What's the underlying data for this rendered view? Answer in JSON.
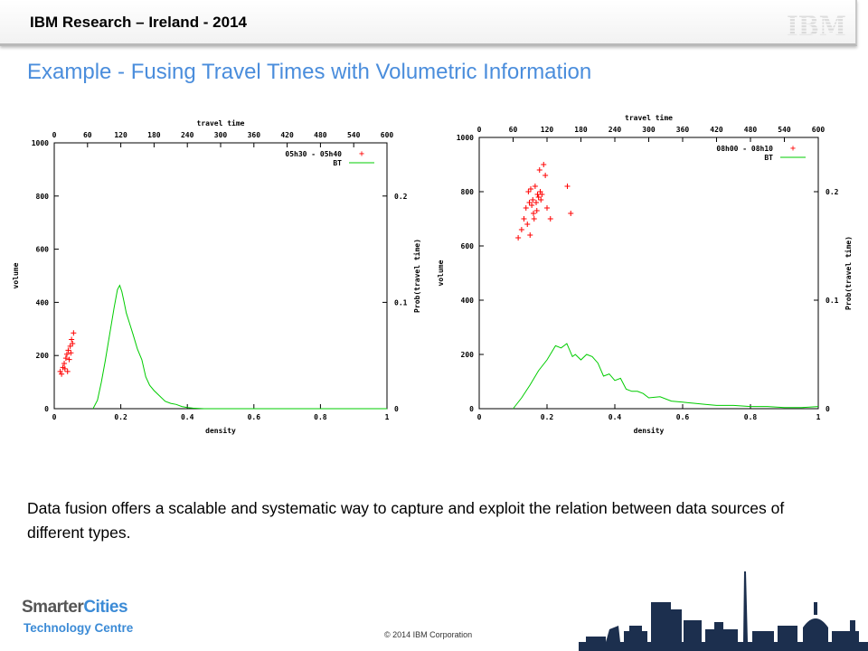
{
  "header": {
    "title": "IBM Research – Ireland - 2014",
    "logo": "IBM"
  },
  "slide_title": "Example - Fusing Travel Times with Volumetric Information",
  "chart_data": [
    {
      "type": "scatter",
      "xlabel": "density",
      "ylabel": "volume",
      "x2label": "travel time",
      "y2label": "Prob(travel time)",
      "xlim": [
        0,
        1
      ],
      "ylim": [
        0,
        1000
      ],
      "x2lim": [
        0,
        600
      ],
      "y2lim": [
        0,
        0.25
      ],
      "xticks": [
        "0",
        "0.2",
        "0.4",
        "0.6",
        "0.8",
        "1"
      ],
      "yticks": [
        "0",
        "200",
        "400",
        "600",
        "800",
        "1000"
      ],
      "x2ticks": [
        "0",
        "60",
        "120",
        "180",
        "240",
        "300",
        "360",
        "420",
        "480",
        "540",
        "600"
      ],
      "y2ticks": [
        "0",
        "0.1",
        "0.2"
      ],
      "legend_position": "top-right",
      "series": [
        {
          "name": "05h30 - 05h40",
          "kind": "points",
          "color": "#ff0000",
          "x": [
            0.018,
            0.022,
            0.026,
            0.03,
            0.032,
            0.035,
            0.038,
            0.04,
            0.042,
            0.045,
            0.048,
            0.05,
            0.052,
            0.055,
            0.058
          ],
          "y": [
            140,
            130,
            155,
            170,
            150,
            190,
            205,
            140,
            220,
            185,
            235,
            210,
            260,
            245,
            285
          ]
        },
        {
          "name": "BT",
          "kind": "line",
          "axis": "secondary",
          "color": "#00cc00",
          "x": [
            70,
            78,
            85,
            92,
            100,
            108,
            114,
            118,
            122,
            126,
            130,
            136,
            142,
            150,
            158,
            165,
            172,
            180,
            190,
            200,
            210,
            220,
            230,
            240,
            250,
            270,
            300,
            330,
            360,
            400,
            450,
            500,
            550,
            600
          ],
          "y": [
            0,
            0.008,
            0.025,
            0.045,
            0.07,
            0.095,
            0.112,
            0.116,
            0.11,
            0.1,
            0.09,
            0.08,
            0.07,
            0.056,
            0.046,
            0.03,
            0.022,
            0.017,
            0.012,
            0.007,
            0.005,
            0.004,
            0.002,
            0.001,
            0.0005,
            0,
            0,
            0,
            0,
            0,
            0,
            0,
            0,
            0
          ]
        }
      ]
    },
    {
      "type": "scatter",
      "xlabel": "density",
      "ylabel": "volume",
      "x2label": "travel time",
      "y2label": "Prob(travel time)",
      "xlim": [
        0,
        1
      ],
      "ylim": [
        0,
        1000
      ],
      "x2lim": [
        0,
        600
      ],
      "y2lim": [
        0,
        0.25
      ],
      "xticks": [
        "0",
        "0.2",
        "0.4",
        "0.6",
        "0.8",
        "1"
      ],
      "yticks": [
        "0",
        "200",
        "400",
        "600",
        "800",
        "1000"
      ],
      "x2ticks": [
        "0",
        "60",
        "120",
        "180",
        "240",
        "300",
        "360",
        "420",
        "480",
        "540",
        "600"
      ],
      "y2ticks": [
        "0",
        "0.1",
        "0.2"
      ],
      "legend_position": "top-right",
      "series": [
        {
          "name": "08h00 - 08h10",
          "kind": "points",
          "color": "#ff0000",
          "x": [
            0.115,
            0.125,
            0.132,
            0.138,
            0.142,
            0.145,
            0.148,
            0.15,
            0.152,
            0.155,
            0.158,
            0.16,
            0.162,
            0.165,
            0.168,
            0.17,
            0.172,
            0.175,
            0.178,
            0.18,
            0.182,
            0.185,
            0.19,
            0.195,
            0.2,
            0.21,
            0.26,
            0.27
          ],
          "y": [
            630,
            660,
            700,
            740,
            680,
            800,
            760,
            640,
            810,
            750,
            770,
            720,
            700,
            820,
            760,
            730,
            790,
            780,
            880,
            800,
            770,
            790,
            900,
            860,
            740,
            700,
            820,
            720
          ]
        },
        {
          "name": "BT",
          "kind": "line",
          "axis": "secondary",
          "color": "#00cc00",
          "x": [
            60,
            75,
            90,
            105,
            120,
            135,
            145,
            155,
            165,
            170,
            180,
            190,
            200,
            210,
            220,
            230,
            240,
            250,
            260,
            270,
            280,
            290,
            300,
            320,
            340,
            360,
            380,
            400,
            420,
            450,
            480,
            510,
            540,
            570,
            600
          ],
          "y": [
            0,
            0.01,
            0.022,
            0.035,
            0.045,
            0.058,
            0.056,
            0.06,
            0.048,
            0.05,
            0.045,
            0.05,
            0.048,
            0.042,
            0.03,
            0.032,
            0.026,
            0.028,
            0.018,
            0.016,
            0.016,
            0.014,
            0.01,
            0.011,
            0.007,
            0.006,
            0.005,
            0.004,
            0.003,
            0.003,
            0.002,
            0.002,
            0.001,
            0.001,
            0.002
          ]
        }
      ]
    }
  ],
  "body_text": "Data fusion offers a scalable and systematic way to capture and exploit the relation between data sources of different types.",
  "footer": {
    "logo_smarter": "Smarter",
    "logo_cities": "Cities",
    "logo_tech": "Technology Centre",
    "copyright": "© 2014 IBM Corporation"
  }
}
